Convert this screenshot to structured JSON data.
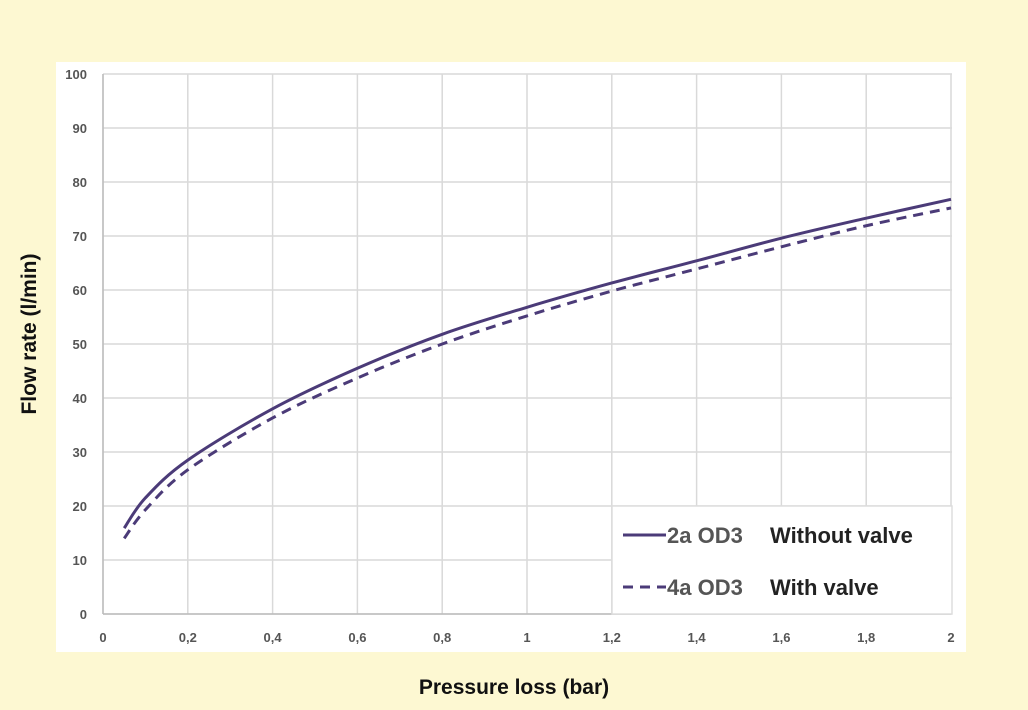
{
  "chart_data": {
    "type": "line",
    "title": "",
    "xlabel": "Pressure loss (bar)",
    "ylabel": "Flow rate (l/min)",
    "xlim": [
      0,
      2
    ],
    "ylim": [
      0,
      100
    ],
    "xticks": [
      "0",
      "0,2",
      "0,4",
      "0,6",
      "0,8",
      "1",
      "1,2",
      "1,4",
      "1,6",
      "1,8",
      "2"
    ],
    "yticks": [
      "0",
      "10",
      "20",
      "30",
      "40",
      "50",
      "60",
      "70",
      "80",
      "90",
      "100"
    ],
    "grid": true,
    "legend_position": "bottom-right",
    "colors": {
      "series": "#4b3b78",
      "background": "#fdf8d2",
      "grid": "#d9d9d9"
    },
    "x": [
      0.05,
      0.1,
      0.2,
      0.4,
      0.6,
      0.8,
      1.0,
      1.2,
      1.4,
      1.6,
      1.8,
      2.0
    ],
    "series": [
      {
        "name": "2a OD3",
        "description": "Without valve",
        "style": "solid",
        "values": [
          15.9,
          21.5,
          28.5,
          38.0,
          45.5,
          51.8,
          56.8,
          61.3,
          65.4,
          69.6,
          73.3,
          76.8
        ]
      },
      {
        "name": "4a OD3",
        "description": "With valve",
        "style": "dashed",
        "values": [
          14.0,
          19.3,
          26.7,
          36.3,
          43.7,
          50.0,
          55.2,
          59.8,
          63.9,
          68.0,
          71.9,
          75.2
        ]
      }
    ]
  }
}
